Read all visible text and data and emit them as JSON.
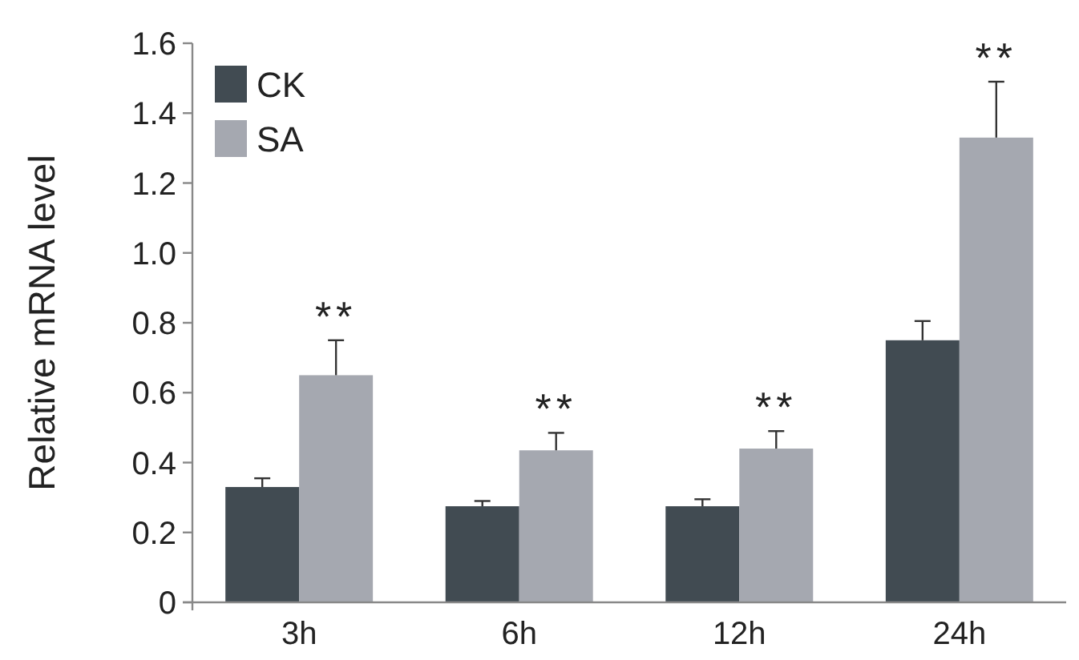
{
  "chart_data": {
    "type": "bar",
    "ylabel": "Relative mRNA level",
    "categories": [
      "3h",
      "6h",
      "12h",
      "24h"
    ],
    "series": [
      {
        "name": "CK",
        "color": "#414b52",
        "values": [
          0.33,
          0.275,
          0.275,
          0.75
        ],
        "errors": [
          [
            0.33,
            0.355
          ],
          [
            0.275,
            0.29
          ],
          [
            0.275,
            0.295
          ],
          [
            0.75,
            0.805
          ]
        ]
      },
      {
        "name": "SA",
        "color": "#a5a8b0",
        "values": [
          0.65,
          0.435,
          0.44,
          1.33
        ],
        "errors": [
          [
            0.65,
            0.75
          ],
          [
            0.435,
            0.485
          ],
          [
            0.44,
            0.49
          ],
          [
            1.33,
            1.49
          ]
        ]
      }
    ],
    "ylim": [
      0,
      1.6
    ],
    "yticks": [
      0,
      {
        "value": 0.2,
        "label": "0.2"
      },
      {
        "value": 0.4,
        "label": "0.4"
      },
      {
        "value": 0.6,
        "label": "0.6"
      },
      {
        "value": 0.8,
        "label": "0.8"
      },
      {
        "value": 1.0,
        "label": "1.0"
      },
      {
        "value": 1.2,
        "label": "1.2"
      },
      {
        "value": 1.4,
        "label": "1.4"
      },
      {
        "value": 1.6,
        "label": "1.6"
      }
    ],
    "grid": false,
    "legend": "top left",
    "annotations": [
      "**",
      "**",
      "**",
      "**"
    ]
  }
}
